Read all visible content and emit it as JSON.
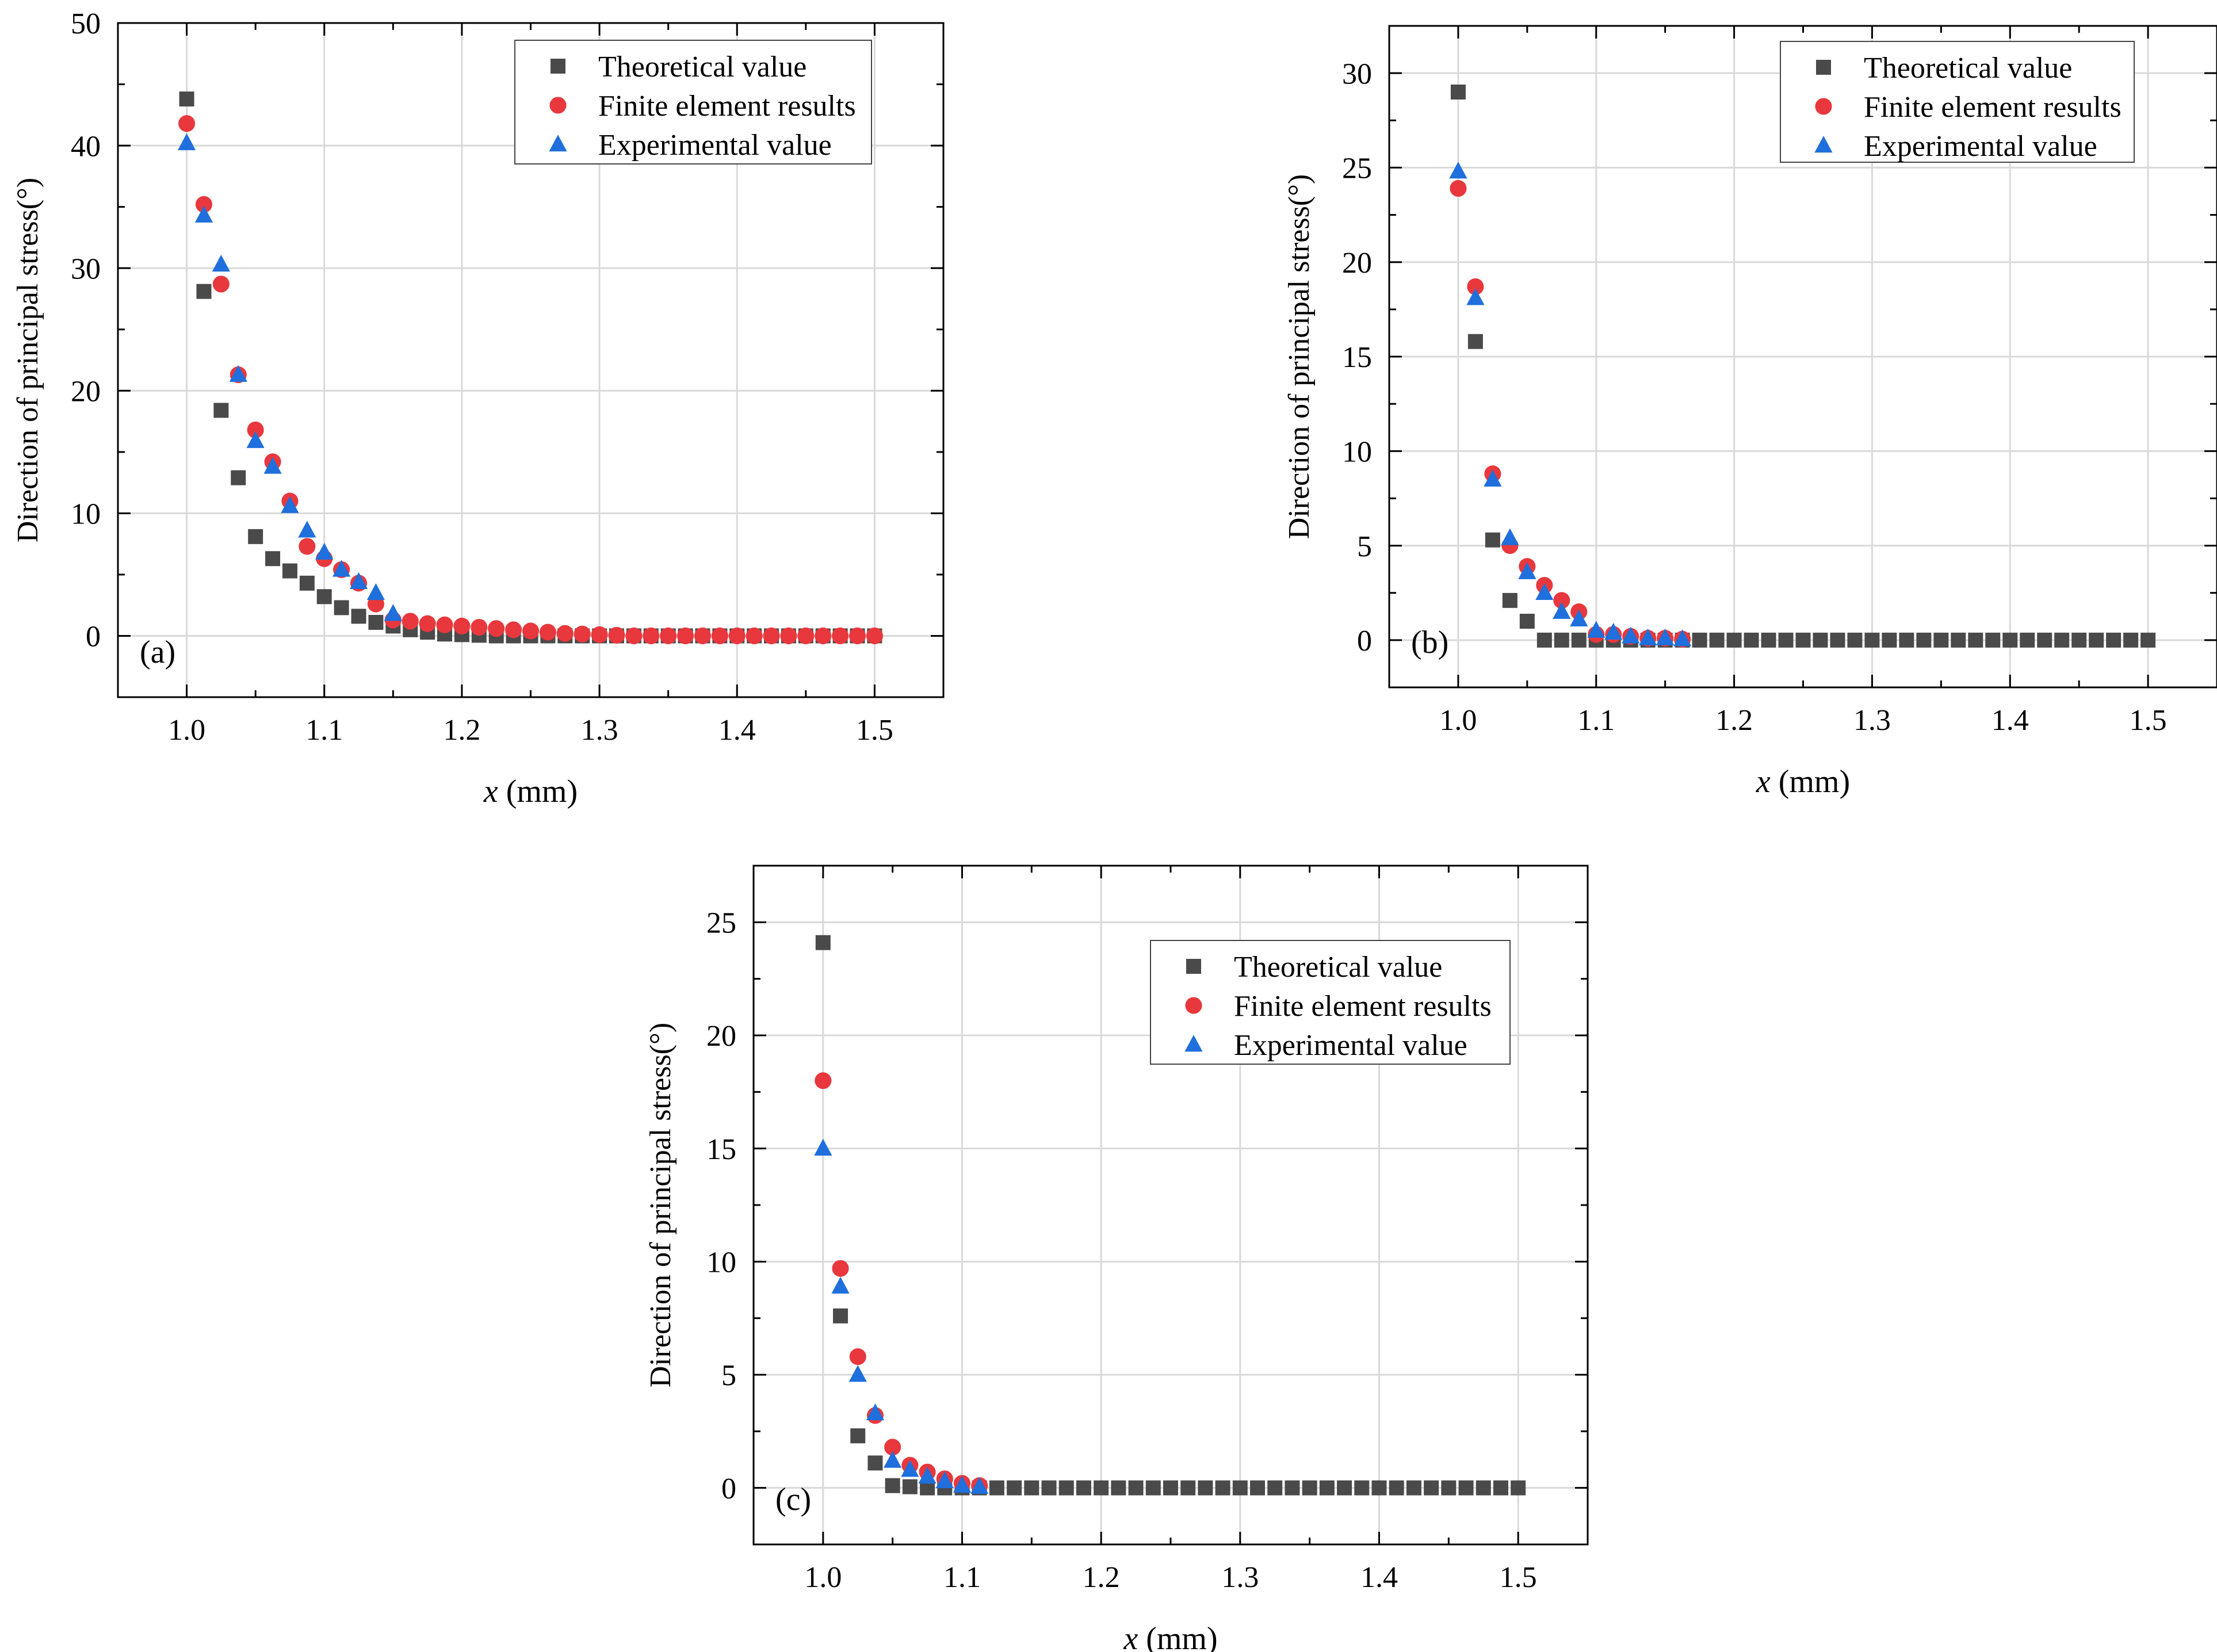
{
  "colors": {
    "theoretical": "#4a4a4a",
    "finite": "#e8383d",
    "experimental": "#1f6fdc",
    "grid": "#d9d9d9",
    "axis": "#000000"
  },
  "legend_labels": {
    "theoretical": "Theoretical value",
    "finite": "Finite element results",
    "experimental": "Experimental value"
  },
  "chart_data": [
    {
      "id": "a",
      "type": "scatter",
      "panel_label": "(a)",
      "xlabel_var": "x",
      "xlabel_unit": " (mm)",
      "ylabel": "Direction of principal stress(°)",
      "xlim": [
        0.95,
        1.55
      ],
      "ylim": [
        -5,
        50
      ],
      "xticks": [
        "1.0",
        "1.1",
        "1.2",
        "1.3",
        "1.4",
        "1.5"
      ],
      "yticks": [
        "0",
        "10",
        "20",
        "30",
        "40",
        "50"
      ],
      "grid": true,
      "legend_position": "top-right",
      "series": [
        {
          "key": "theoretical",
          "marker": "square",
          "x": [
            1.0,
            1.0125,
            1.025,
            1.0375,
            1.05,
            1.0625,
            1.075,
            1.0875,
            1.1,
            1.1125,
            1.125,
            1.1375,
            1.15,
            1.1625,
            1.175,
            1.1875,
            1.2,
            1.2125,
            1.225,
            1.2375,
            1.25,
            1.2625,
            1.275,
            1.2875,
            1.3,
            1.3125,
            1.325,
            1.3375,
            1.35,
            1.3625,
            1.375,
            1.3875,
            1.4,
            1.4125,
            1.425,
            1.4375,
            1.45,
            1.4625,
            1.475,
            1.4875,
            1.5
          ],
          "y": [
            43.8,
            28.1,
            18.4,
            12.9,
            8.1,
            6.3,
            5.3,
            4.3,
            3.2,
            2.3,
            1.6,
            1.1,
            0.8,
            0.5,
            0.3,
            0.15,
            0.1,
            0.05,
            0,
            0,
            0,
            0,
            0,
            0,
            0,
            0,
            0,
            0,
            0,
            0,
            0,
            0,
            0,
            0,
            0,
            0,
            0,
            0,
            0,
            0,
            0
          ]
        },
        {
          "key": "finite",
          "marker": "circle",
          "x": [
            1.0,
            1.0125,
            1.025,
            1.0375,
            1.05,
            1.0625,
            1.075,
            1.0875,
            1.1,
            1.1125,
            1.125,
            1.1375,
            1.15,
            1.1625,
            1.175,
            1.1875,
            1.2,
            1.2125,
            1.225,
            1.2375,
            1.25,
            1.2625,
            1.275,
            1.2875,
            1.3,
            1.3125,
            1.325,
            1.3375,
            1.35,
            1.3625,
            1.375,
            1.3875,
            1.4,
            1.4125,
            1.425,
            1.4375,
            1.45,
            1.4625,
            1.475,
            1.4875,
            1.5
          ],
          "y": [
            41.8,
            35.2,
            28.7,
            21.3,
            16.8,
            14.2,
            11.0,
            7.3,
            6.3,
            5.4,
            4.3,
            2.6,
            1.3,
            1.2,
            1.0,
            0.9,
            0.8,
            0.7,
            0.6,
            0.5,
            0.4,
            0.3,
            0.2,
            0.15,
            0.1,
            0.05,
            0,
            0,
            0,
            0,
            0,
            0,
            0,
            0,
            0,
            0,
            0,
            0,
            0,
            0,
            0
          ]
        },
        {
          "key": "experimental",
          "marker": "triangle",
          "x": [
            1.0,
            1.0125,
            1.025,
            1.0375,
            1.05,
            1.0625,
            1.075,
            1.0875,
            1.1,
            1.1125,
            1.125,
            1.1375,
            1.15
          ],
          "y": [
            40.2,
            34.3,
            30.3,
            21.3,
            15.9,
            13.8,
            10.6,
            8.6,
            6.8,
            5.4,
            4.4,
            3.5,
            1.8
          ]
        }
      ]
    },
    {
      "id": "b",
      "type": "scatter",
      "panel_label": "(b)",
      "xlabel_var": "x",
      "xlabel_unit": " (mm)",
      "ylabel": "Direction of principal stress(°)",
      "xlim": [
        0.95,
        1.55
      ],
      "ylim": [
        -2.5,
        32.5
      ],
      "xticks": [
        "1.0",
        "1.1",
        "1.2",
        "1.3",
        "1.4",
        "1.5"
      ],
      "yticks": [
        "0",
        "5",
        "10",
        "15",
        "20",
        "25",
        "30"
      ],
      "grid": true,
      "legend_position": "top-right",
      "series": [
        {
          "key": "theoretical",
          "marker": "square",
          "x": [
            1.0,
            1.0125,
            1.025,
            1.0375,
            1.05,
            1.0625,
            1.075,
            1.0875,
            1.1,
            1.1125,
            1.125,
            1.1375,
            1.15,
            1.1625,
            1.175,
            1.1875,
            1.2,
            1.2125,
            1.225,
            1.2375,
            1.25,
            1.2625,
            1.275,
            1.2875,
            1.3,
            1.3125,
            1.325,
            1.3375,
            1.35,
            1.3625,
            1.375,
            1.3875,
            1.4,
            1.4125,
            1.425,
            1.4375,
            1.45,
            1.4625,
            1.475,
            1.4875,
            1.5
          ],
          "y": [
            29.0,
            15.8,
            5.3,
            2.1,
            1.0,
            0,
            0,
            0,
            0,
            0,
            0,
            0,
            0,
            0,
            0,
            0,
            0,
            0,
            0,
            0,
            0,
            0,
            0,
            0,
            0,
            0,
            0,
            0,
            0,
            0,
            0,
            0,
            0,
            0,
            0,
            0,
            0,
            0,
            0,
            0,
            0
          ]
        },
        {
          "key": "finite",
          "marker": "circle",
          "x": [
            1.0,
            1.0125,
            1.025,
            1.0375,
            1.05,
            1.0625,
            1.075,
            1.0875,
            1.1,
            1.1125,
            1.125,
            1.1375,
            1.15,
            1.1625
          ],
          "y": [
            23.9,
            18.7,
            8.8,
            5.0,
            3.9,
            2.9,
            2.1,
            1.5,
            0.3,
            0.3,
            0.2,
            0.1,
            0.1,
            0.05
          ]
        },
        {
          "key": "experimental",
          "marker": "triangle",
          "x": [
            1.0,
            1.0125,
            1.025,
            1.0375,
            1.05,
            1.0625,
            1.075,
            1.0875,
            1.1,
            1.1125,
            1.125,
            1.1375,
            1.15,
            1.1625
          ],
          "y": [
            24.8,
            18.1,
            8.5,
            5.4,
            3.6,
            2.5,
            1.5,
            1.1,
            0.5,
            0.4,
            0.2,
            0.1,
            0.1,
            0.05
          ]
        }
      ]
    },
    {
      "id": "c",
      "type": "scatter",
      "panel_label": "(c)",
      "xlabel_var": "x",
      "xlabel_unit": " (mm)",
      "ylabel": "Direction of principal stress(°)",
      "xlim": [
        0.95,
        1.55
      ],
      "ylim": [
        -2.5,
        27.5
      ],
      "xticks": [
        "1.0",
        "1.1",
        "1.2",
        "1.3",
        "1.4",
        "1.5"
      ],
      "yticks": [
        "0",
        "5",
        "10",
        "15",
        "20",
        "25"
      ],
      "grid": true,
      "legend_position": "top-right",
      "series": [
        {
          "key": "theoretical",
          "marker": "square",
          "x": [
            1.0,
            1.0125,
            1.025,
            1.0375,
            1.05,
            1.0625,
            1.075,
            1.0875,
            1.1,
            1.1125,
            1.125,
            1.1375,
            1.15,
            1.1625,
            1.175,
            1.1875,
            1.2,
            1.2125,
            1.225,
            1.2375,
            1.25,
            1.2625,
            1.275,
            1.2875,
            1.3,
            1.3125,
            1.325,
            1.3375,
            1.35,
            1.3625,
            1.375,
            1.3875,
            1.4,
            1.4125,
            1.425,
            1.4375,
            1.45,
            1.4625,
            1.475,
            1.4875,
            1.5
          ],
          "y": [
            24.1,
            7.6,
            2.3,
            1.1,
            0.1,
            0.05,
            0,
            0,
            0,
            0,
            0,
            0,
            0,
            0,
            0,
            0,
            0,
            0,
            0,
            0,
            0,
            0,
            0,
            0,
            0,
            0,
            0,
            0,
            0,
            0,
            0,
            0,
            0,
            0,
            0,
            0,
            0,
            0,
            0,
            0,
            0
          ]
        },
        {
          "key": "finite",
          "marker": "circle",
          "x": [
            1.0,
            1.0125,
            1.025,
            1.0375,
            1.05,
            1.0625,
            1.075,
            1.0875,
            1.1,
            1.1125
          ],
          "y": [
            18.0,
            9.7,
            5.8,
            3.2,
            1.8,
            1.0,
            0.7,
            0.4,
            0.2,
            0.1
          ]
        },
        {
          "key": "experimental",
          "marker": "triangle",
          "x": [
            1.0,
            1.0125,
            1.025,
            1.0375,
            1.05,
            1.0625,
            1.075,
            1.0875,
            1.1,
            1.1125
          ],
          "y": [
            15.0,
            8.9,
            5.0,
            3.3,
            1.2,
            0.8,
            0.5,
            0.3,
            0.1,
            0.05
          ]
        }
      ]
    }
  ]
}
